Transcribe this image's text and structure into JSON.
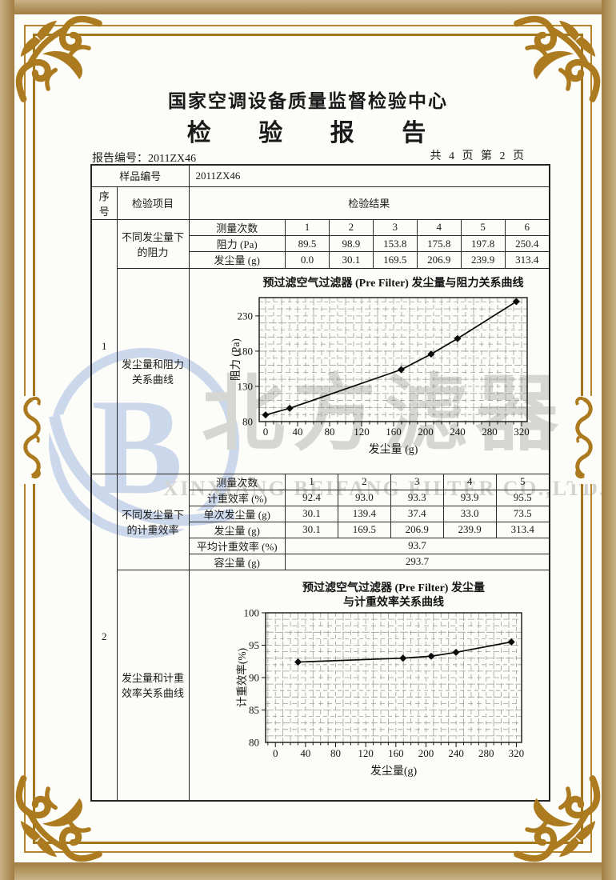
{
  "header": {
    "center_name": "国家空调设备质量监督检验中心",
    "report_title": "检 验 报 告",
    "report_no": "报告编号：2011ZX46",
    "page_info": "共 4 页 第 2 页"
  },
  "sample": {
    "label": "样品编号",
    "value": "2011ZX46"
  },
  "columns": {
    "seq": "序号",
    "item": "检验项目",
    "result": "检验结果"
  },
  "sections": [
    {
      "seq": "1",
      "item_top": "不同发尘量下的阻力",
      "item_bottom": "发尘量和阻力关系曲线",
      "measure_label": "测量次数",
      "measure_numbers": [
        "1",
        "2",
        "3",
        "4",
        "5",
        "6"
      ],
      "rows": [
        {
          "label": "阻力 (Pa)",
          "values": [
            "89.5",
            "98.9",
            "153.8",
            "175.8",
            "197.8",
            "250.4"
          ]
        },
        {
          "label": "发尘量 (g)",
          "values": [
            "0.0",
            "30.1",
            "169.5",
            "206.9",
            "239.9",
            "313.4"
          ]
        }
      ]
    },
    {
      "seq": "2",
      "item_top": "不同发尘量下的计重效率",
      "item_bottom": "发尘量和计重效率关系曲线",
      "measure_label": "测量次数",
      "measure_numbers": [
        "1",
        "2",
        "3",
        "4",
        "5"
      ],
      "rows": [
        {
          "label": "计重效率 (%)",
          "values": [
            "92.4",
            "93.0",
            "93.3",
            "93.9",
            "95.5"
          ]
        },
        {
          "label": "单次发尘量 (g)",
          "values": [
            "30.1",
            "139.4",
            "37.4",
            "33.0",
            "73.5"
          ]
        },
        {
          "label": "发尘量 (g)",
          "values": [
            "30.1",
            "169.5",
            "206.9",
            "239.9",
            "313.4"
          ]
        }
      ],
      "summary": [
        {
          "label": "平均计重效率 (%)",
          "value": "93.7"
        },
        {
          "label": "容尘量 (g)",
          "value": "293.7"
        }
      ]
    }
  ],
  "chart_data": [
    {
      "type": "line",
      "title": "预过滤空气过滤器 (Pre Filter) 发尘量与阻力关系曲线",
      "title_lines": [
        "预过滤空气过滤器 (Pre Filter) 发尘量与阻力关系曲线"
      ],
      "xlabel": "发尘量 (g)",
      "ylabel": "阻力 (Pa)",
      "x": [
        0,
        30.1,
        169.5,
        206.9,
        239.9,
        313.4
      ],
      "y": [
        89.5,
        98.9,
        153.8,
        175.8,
        197.8,
        250.4
      ],
      "xticks": [
        0,
        40,
        80,
        120,
        160,
        200,
        240,
        280,
        320
      ],
      "yticks": [
        80,
        130,
        180,
        230
      ],
      "xlim": [
        -8,
        327
      ],
      "ylim": [
        80,
        256
      ],
      "minor_x_step": 10,
      "minor_y_step": 10,
      "grid": true,
      "legend": "none",
      "marker": "diamond"
    },
    {
      "type": "line",
      "title": "预过滤空气过滤器 (Pre Filter) 发尘量与计重效率关系曲线",
      "title_lines": [
        "预过滤空气过滤器 (Pre Filter) 发尘量",
        "与计重效率关系曲线"
      ],
      "xlabel": "发尘量(g)",
      "ylabel": "计重效率(%)",
      "x": [
        30.1,
        169.5,
        206.9,
        239.9,
        313.4
      ],
      "y": [
        92.4,
        93.0,
        93.3,
        93.9,
        95.5
      ],
      "xticks": [
        0,
        40,
        80,
        120,
        160,
        200,
        240,
        280,
        320
      ],
      "yticks": [
        80,
        85,
        90,
        95,
        100
      ],
      "xlim": [
        -13,
        327
      ],
      "ylim": [
        80,
        100
      ],
      "minor_x_step": 10,
      "minor_y_step": 1,
      "grid": true,
      "legend": "none",
      "marker": "diamond"
    }
  ],
  "watermark": {
    "logo_letter": "B",
    "brand_text": "北方滤器",
    "company_text": "XINXIANG BEIFANG FILTER CO.,LTD.",
    "logo_color": "#cbd7eb",
    "text_color": "#d6d7d2"
  },
  "frame_colors": {
    "ornament": "#ad7b1f",
    "band": "#a27d42"
  }
}
